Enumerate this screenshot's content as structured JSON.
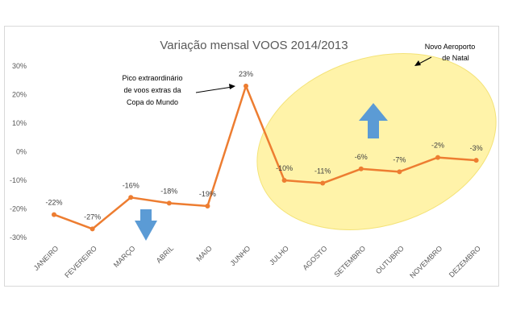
{
  "chart_data": {
    "type": "line",
    "title": "Variação mensal VOOS 2014/2013",
    "categories": [
      "JANEIRO",
      "FEVEREIRO",
      "MARÇO",
      "ABRIL",
      "MAIO",
      "JUNHO",
      "JULHO",
      "AGOSTO",
      "SETEMBRO",
      "OUTUBRO",
      "NOVEMBRO",
      "DEZEMBRO"
    ],
    "values": [
      -22,
      -27,
      -16,
      -18,
      -19,
      23,
      -10,
      -11,
      -6,
      -7,
      -2,
      -3
    ],
    "data_labels": [
      "-22%",
      "-27%",
      "-16%",
      "-18%",
      "-19%",
      "23%",
      "-10%",
      "-11%",
      "-6%",
      "-7%",
      "-2%",
      "-3%"
    ],
    "ylim": [
      -30,
      30
    ],
    "yticks": [
      30,
      20,
      10,
      0,
      -10,
      -20,
      -30
    ],
    "ytick_labels": [
      "30%",
      "20%",
      "10%",
      "0%",
      "-10%",
      "-20%",
      "-30%"
    ],
    "grid": false,
    "line_color": "#ed7d31",
    "annotations": {
      "peak_note": [
        "Pico extraordinário",
        "de voos extras da",
        "Copa do Mundo"
      ],
      "airport_note": [
        "Novo Aeroporto",
        "de Natal"
      ]
    },
    "highlight_color": "#fff2a0",
    "arrow_color": "#5b9bd5"
  }
}
